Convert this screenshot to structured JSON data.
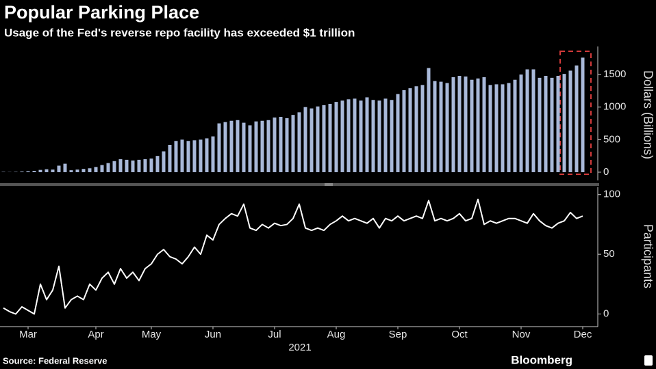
{
  "title": "Popular Parking Place",
  "subtitle": "Usage of the Fed's reverse repo facility has exceeded $1 trillion",
  "source": "Source: Federal Reserve",
  "brand": "Bloomberg",
  "chart_data": [
    {
      "type": "bar",
      "y_label": "Dollars (Billions)",
      "color": "#a9b9d9",
      "ylim": [
        -100,
        1900
      ],
      "yticks": [
        0,
        500,
        1000,
        1500
      ],
      "grid": false,
      "values": [
        5,
        3,
        5,
        10,
        15,
        20,
        35,
        45,
        40,
        100,
        130,
        30,
        40,
        50,
        60,
        80,
        110,
        140,
        170,
        200,
        190,
        180,
        190,
        200,
        210,
        250,
        320,
        420,
        480,
        500,
        480,
        490,
        500,
        520,
        550,
        750,
        770,
        790,
        800,
        760,
        720,
        780,
        790,
        800,
        840,
        850,
        830,
        880,
        920,
        1000,
        980,
        1010,
        1030,
        1050,
        1080,
        1100,
        1120,
        1130,
        1100,
        1150,
        1110,
        1100,
        1130,
        1110,
        1200,
        1260,
        1290,
        1320,
        1340,
        1600,
        1400,
        1390,
        1370,
        1460,
        1480,
        1470,
        1420,
        1440,
        1460,
        1340,
        1350,
        1350,
        1370,
        1420,
        1500,
        1580,
        1580,
        1450,
        1480,
        1450,
        1480,
        1510,
        1560,
        1640,
        1760
      ]
    },
    {
      "type": "line",
      "y_label": "Participants",
      "color": "#ffffff",
      "ylim": [
        -10,
        105
      ],
      "yticks": [
        0,
        50,
        100
      ],
      "grid": false,
      "x_title": "2021",
      "categories": [
        null,
        null,
        null,
        null,
        "Mar",
        null,
        null,
        null,
        null,
        null,
        null,
        null,
        null,
        null,
        null,
        "Apr",
        null,
        null,
        null,
        null,
        null,
        null,
        null,
        null,
        "May",
        null,
        null,
        null,
        null,
        null,
        null,
        null,
        null,
        null,
        "Jun",
        null,
        null,
        null,
        null,
        null,
        null,
        null,
        null,
        null,
        "Jul",
        null,
        null,
        null,
        null,
        null,
        null,
        null,
        null,
        null,
        "Aug",
        null,
        null,
        null,
        null,
        null,
        null,
        null,
        null,
        null,
        "Sep",
        null,
        null,
        null,
        null,
        null,
        null,
        null,
        null,
        null,
        "Oct",
        null,
        null,
        null,
        null,
        null,
        null,
        null,
        null,
        null,
        "Nov",
        null,
        null,
        null,
        null,
        null,
        null,
        null,
        null,
        null,
        "Dec"
      ],
      "values": [
        5,
        2,
        0,
        6,
        3,
        0,
        25,
        12,
        20,
        40,
        5,
        12,
        15,
        12,
        25,
        20,
        30,
        35,
        25,
        38,
        30,
        35,
        28,
        38,
        42,
        50,
        54,
        48,
        46,
        42,
        48,
        56,
        50,
        66,
        62,
        75,
        80,
        84,
        82,
        92,
        72,
        70,
        75,
        72,
        76,
        74,
        75,
        80,
        92,
        72,
        70,
        72,
        70,
        75,
        78,
        82,
        78,
        80,
        78,
        76,
        80,
        72,
        80,
        78,
        82,
        78,
        80,
        82,
        80,
        95,
        78,
        80,
        78,
        80,
        84,
        78,
        80,
        96,
        75,
        78,
        76,
        78,
        80,
        80,
        78,
        76,
        84,
        78,
        74,
        72,
        76,
        78,
        85,
        80,
        82
      ]
    }
  ]
}
